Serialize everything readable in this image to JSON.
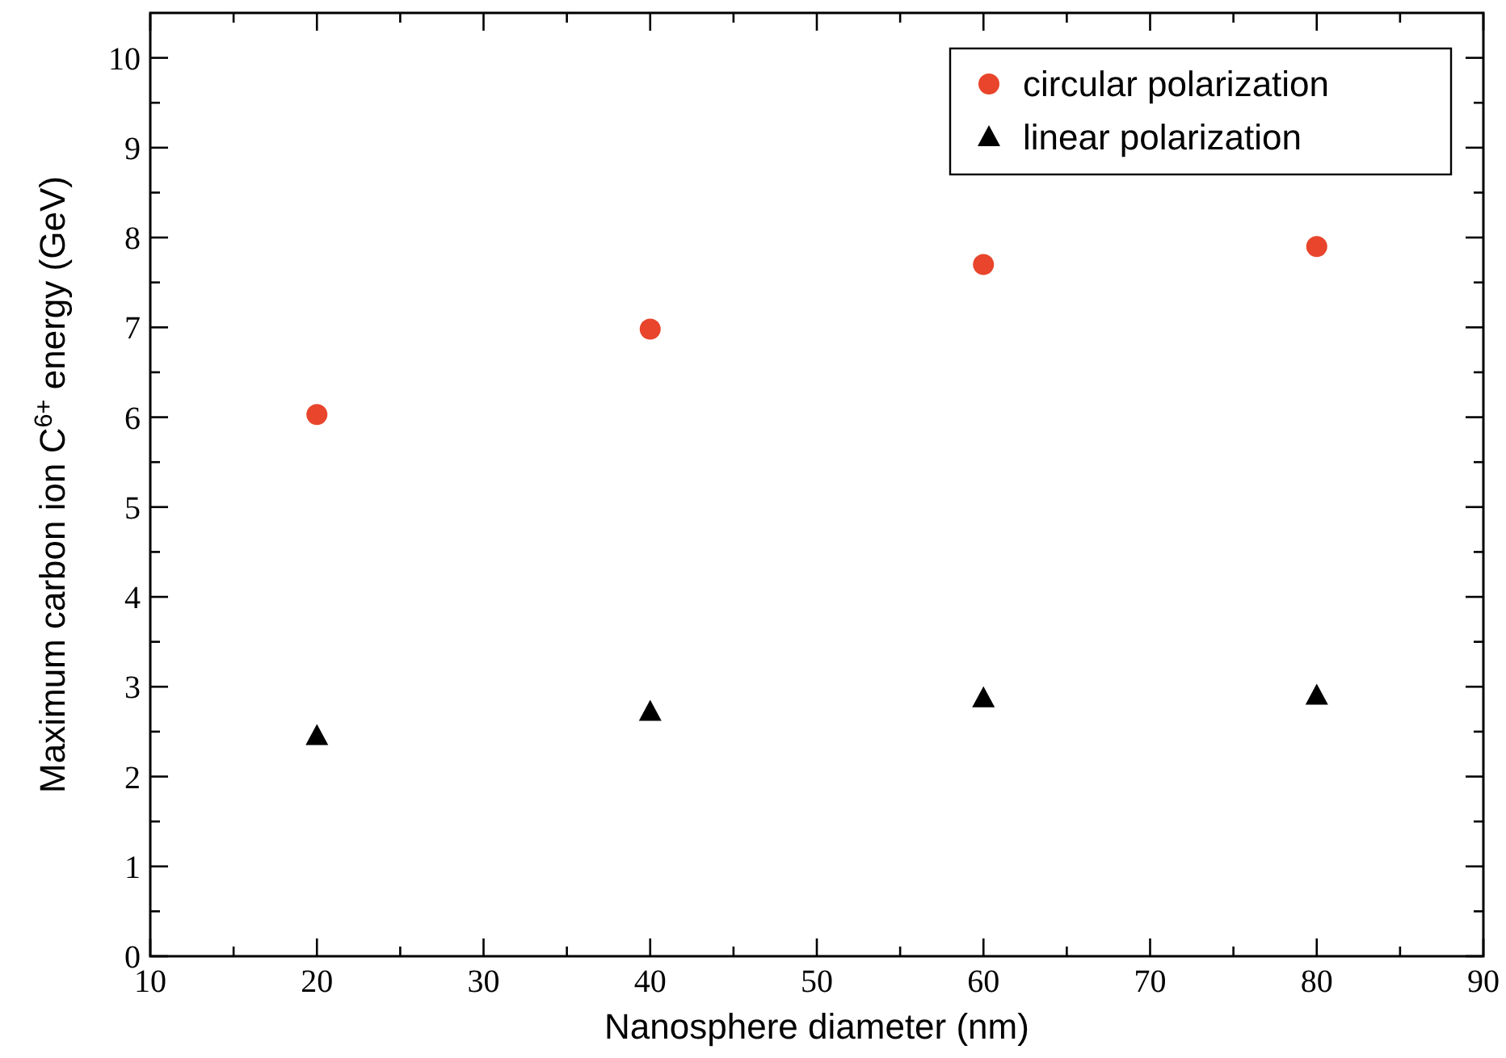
{
  "chart_data": {
    "type": "scatter",
    "xlabel": "Nanosphere diameter (nm)",
    "ylabel": "Maximum carbon ion C$^{6+}$ energy (GeV)",
    "x": [
      20,
      40,
      60,
      80
    ],
    "series": [
      {
        "name": "circular polarization",
        "color": "#e8452c",
        "marker": "circle",
        "values": [
          6.03,
          6.98,
          7.7,
          7.9
        ]
      },
      {
        "name": "linear polarization",
        "color": "#000000",
        "marker": "triangle",
        "values": [
          2.45,
          2.72,
          2.87,
          2.9
        ]
      }
    ],
    "xlim": [
      10,
      90
    ],
    "ylim": [
      0,
      10.5
    ],
    "xticks": [
      10,
      {
        "value": 15,
        "label": null
      },
      20,
      {
        "value": 25,
        "label": null
      },
      30,
      {
        "value": 35,
        "label": null
      },
      40,
      {
        "value": 45,
        "label": null
      },
      50,
      {
        "value": 55,
        "label": null
      },
      60,
      {
        "value": 65,
        "label": null
      },
      70,
      {
        "value": 75,
        "label": null
      },
      80,
      {
        "value": 85,
        "label": null
      },
      90
    ],
    "yticks": [
      0,
      {
        "value": 0.5,
        "label": null
      },
      1,
      {
        "value": 1.5,
        "label": null
      },
      2,
      {
        "value": 2.5,
        "label": null
      },
      3,
      {
        "value": 3.5,
        "label": null
      },
      4,
      {
        "value": 4.5,
        "label": null
      },
      5,
      {
        "value": 5.5,
        "label": null
      },
      6,
      {
        "value": 6.5,
        "label": null
      },
      7,
      {
        "value": 7.5,
        "label": null
      },
      8,
      {
        "value": 8.5,
        "label": null
      },
      9,
      {
        "value": 9.5,
        "label": null
      },
      10
    ],
    "grid": false,
    "legend": "top right"
  }
}
